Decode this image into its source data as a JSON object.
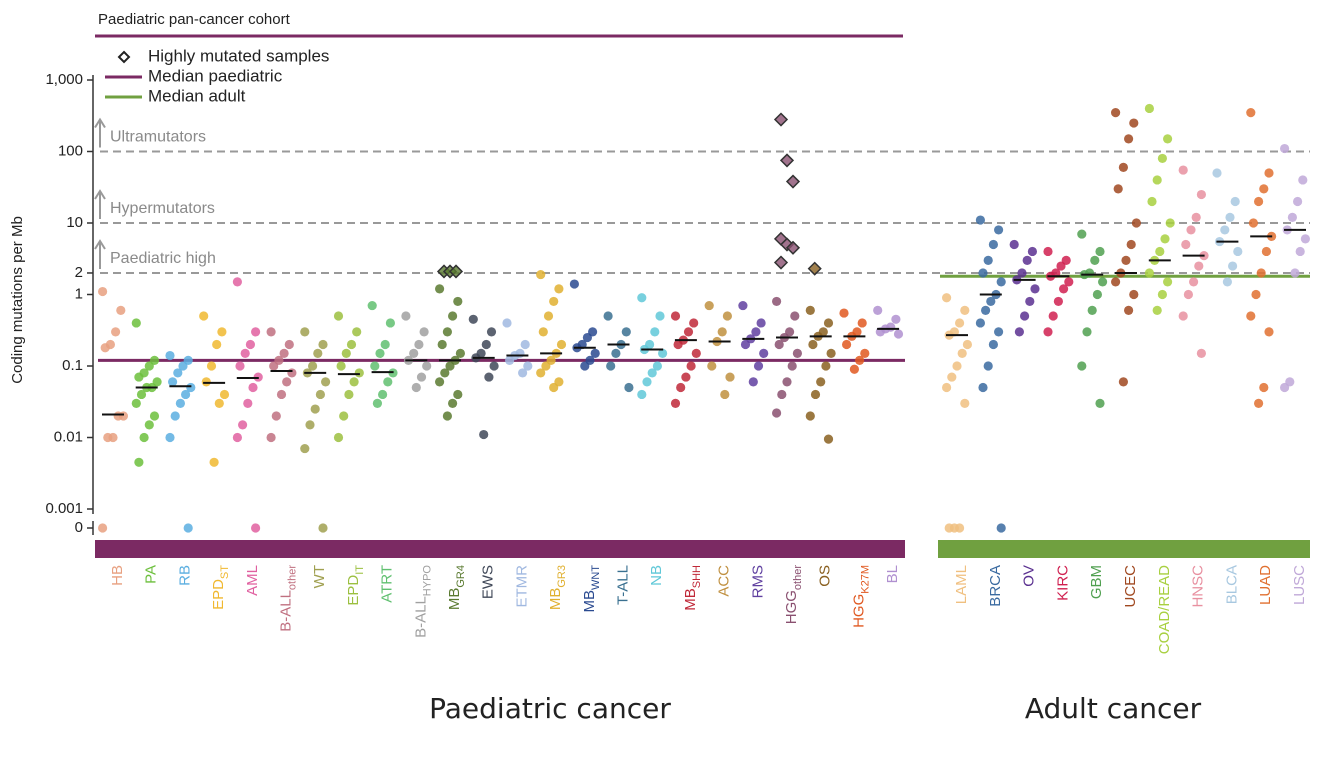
{
  "chart_data": {
    "type": "strip",
    "title": "Paediatric pan-cancer cohort",
    "title_color": "#7b2a63",
    "y_label": "Coding mutations per Mb",
    "log": true,
    "ylim": [
      0.001,
      1000
    ],
    "yticks": [
      0,
      0.001,
      0.01,
      0.1,
      1,
      2,
      10,
      100,
      {
        "value": 1000,
        "label": "1,000"
      }
    ],
    "reference_lines": [
      {
        "value": 2,
        "label": "Paediatric high"
      },
      {
        "value": 10,
        "label": "Hypermutators"
      },
      {
        "value": 100,
        "label": "Ultramutators"
      }
    ],
    "highly_mutated_label": "Highly mutated samples",
    "groups": [
      {
        "name": "Paediatric cancer",
        "color": "#7b2a63",
        "label_color": "#7030a0",
        "median": 0.12,
        "median_label": "Median paediatric",
        "categories": [
          {
            "name": "HB",
            "color": "#e8a080",
            "median": 0.021,
            "values": [
              1.1,
              0.6,
              0.3,
              0.2,
              0.18,
              0.02,
              0.02,
              0.01,
              0.01,
              0
            ]
          },
          {
            "name": "PA",
            "color": "#6cbf3c",
            "median": 0.05,
            "values": [
              0.4,
              0.12,
              0.1,
              0.08,
              0.07,
              0.06,
              0.05,
              0.05,
              0.04,
              0.03,
              0.02,
              0.015,
              0.01,
              0.0045
            ]
          },
          {
            "name": "RB",
            "color": "#5aaee0",
            "median": 0.052,
            "values": [
              0.14,
              0.12,
              0.1,
              0.08,
              0.06,
              0.05,
              0.04,
              0.03,
              0.02,
              0.01,
              0
            ]
          },
          {
            "name": "EPD",
            "sub": "ST",
            "color": "#f0b830",
            "median": 0.058,
            "values": [
              0.5,
              0.3,
              0.2,
              0.1,
              0.06,
              0.04,
              0.03,
              0.0045
            ]
          },
          {
            "name": "AML",
            "color": "#e060a0",
            "median": 0.068,
            "values": [
              1.5,
              0.3,
              0.2,
              0.15,
              0.1,
              0.07,
              0.05,
              0.03,
              0.015,
              0.01,
              0
            ]
          },
          {
            "name": "B-ALL",
            "sub": "other",
            "color": "#c07080",
            "median": 0.085,
            "values": [
              0.3,
              0.2,
              0.15,
              0.12,
              0.1,
              0.08,
              0.06,
              0.04,
              0.02,
              0.01
            ]
          },
          {
            "name": "WT",
            "color": "#a0a050",
            "median": 0.08,
            "values": [
              0.3,
              0.2,
              0.15,
              0.1,
              0.08,
              0.06,
              0.04,
              0.025,
              0.015,
              0.007,
              0
            ]
          },
          {
            "name": "EPD",
            "sub": "IT",
            "color": "#9cc040",
            "median": 0.077,
            "values": [
              0.5,
              0.3,
              0.2,
              0.15,
              0.1,
              0.08,
              0.06,
              0.04,
              0.02,
              0.01
            ]
          },
          {
            "name": "ATRT",
            "color": "#60c070",
            "median": 0.082,
            "values": [
              0.7,
              0.4,
              0.2,
              0.15,
              0.1,
              0.08,
              0.06,
              0.04,
              0.03
            ]
          },
          {
            "name": "B-ALL",
            "sub": "HYPO",
            "color": "#a0a0a0",
            "median": 0.12,
            "values": [
              0.5,
              0.3,
              0.2,
              0.15,
              0.12,
              0.1,
              0.07,
              0.05
            ]
          },
          {
            "name": "MB",
            "sub": "GR4",
            "color": "#5a7a30",
            "median": 0.12,
            "values": [
              1.2,
              0.8,
              0.5,
              0.3,
              0.2,
              0.15,
              0.12,
              0.1,
              0.08,
              0.06,
              0.04,
              0.03,
              0.02
            ],
            "outliers": [
              2.1,
              2.1,
              2.1
            ]
          },
          {
            "name": "EWS",
            "color": "#404858",
            "median": 0.13,
            "values": [
              0.45,
              0.3,
              0.2,
              0.15,
              0.13,
              0.1,
              0.07,
              0.011
            ]
          },
          {
            "name": "ETMR",
            "color": "#a0b8e0",
            "median": 0.14,
            "values": [
              0.4,
              0.2,
              0.15,
              0.14,
              0.12,
              0.1,
              0.08
            ]
          },
          {
            "name": "MB",
            "sub": "GR3",
            "color": "#e0b030",
            "median": 0.15,
            "values": [
              1.9,
              1.2,
              0.8,
              0.5,
              0.3,
              0.2,
              0.15,
              0.12,
              0.1,
              0.08,
              0.06,
              0.05
            ]
          },
          {
            "name": "MB",
            "sub": "WNT",
            "color": "#2a4a90",
            "median": 0.18,
            "values": [
              1.4,
              0.3,
              0.25,
              0.2,
              0.18,
              0.15,
              0.12,
              0.1
            ]
          },
          {
            "name": "T-ALL",
            "color": "#3a7090",
            "median": 0.2,
            "values": [
              0.5,
              0.3,
              0.2,
              0.15,
              0.1,
              0.05
            ]
          },
          {
            "name": "NB",
            "color": "#60c8d8",
            "median": 0.17,
            "values": [
              0.9,
              0.5,
              0.3,
              0.2,
              0.17,
              0.15,
              0.1,
              0.08,
              0.06,
              0.04
            ]
          },
          {
            "name": "MB",
            "sub": "SHH",
            "color": "#c02838",
            "median": 0.23,
            "values": [
              0.5,
              0.4,
              0.3,
              0.23,
              0.2,
              0.15,
              0.1,
              0.07,
              0.05,
              0.03
            ]
          },
          {
            "name": "ACC",
            "color": "#c09040",
            "median": 0.22,
            "values": [
              0.7,
              0.5,
              0.3,
              0.22,
              0.1,
              0.07,
              0.04
            ]
          },
          {
            "name": "RMS",
            "color": "#6040a0",
            "median": 0.24,
            "values": [
              0.7,
              0.4,
              0.3,
              0.24,
              0.2,
              0.15,
              0.1,
              0.06
            ]
          },
          {
            "name": "HGG",
            "sub": "other",
            "color": "#8a5070",
            "median": 0.25,
            "values": [
              0.8,
              0.5,
              0.3,
              0.25,
              0.2,
              0.15,
              0.1,
              0.06,
              0.04,
              0.022
            ],
            "outliers": [
              280,
              75,
              38,
              6,
              5,
              4.5,
              2.8
            ]
          },
          {
            "name": "OS",
            "color": "#8a6020",
            "median": 0.26,
            "values": [
              0.6,
              0.4,
              0.3,
              0.26,
              0.2,
              0.15,
              0.1,
              0.06,
              0.04,
              0.02,
              0.0095
            ],
            "outliers": [
              2.3
            ]
          },
          {
            "name": "HGG",
            "sub": "K27M",
            "color": "#e05820",
            "median": 0.26,
            "values": [
              0.55,
              0.4,
              0.3,
              0.26,
              0.2,
              0.15,
              0.12,
              0.09
            ]
          },
          {
            "name": "BL",
            "color": "#b090d0",
            "median": 0.33,
            "values": [
              0.6,
              0.45,
              0.35,
              0.33,
              0.3,
              0.28
            ]
          }
        ]
      },
      {
        "name": "Adult cancer",
        "color": "#70a040",
        "label_color": "#70ad47",
        "median": 1.8,
        "median_label": "Median adult",
        "categories": [
          {
            "name": "LAML",
            "color": "#f0c080",
            "median": 0.27,
            "values": [
              0.9,
              0.6,
              0.4,
              0.3,
              0.27,
              0.2,
              0.15,
              0.1,
              0.07,
              0.05,
              0.03,
              0,
              0,
              0
            ]
          },
          {
            "name": "BRCA",
            "color": "#3a6aa0",
            "median": 1.0,
            "values": [
              11,
              8,
              5,
              3,
              2,
              1.5,
              1,
              0.8,
              0.6,
              0.4,
              0.3,
              0.2,
              0.1,
              0.05,
              0
            ]
          },
          {
            "name": "OV",
            "color": "#5a3090",
            "median": 1.6,
            "values": [
              5,
              4,
              3,
              2,
              1.6,
              1.2,
              0.8,
              0.5,
              0.3
            ]
          },
          {
            "name": "KIRC",
            "color": "#d02050",
            "median": 1.8,
            "values": [
              4,
              3,
              2.5,
              2,
              1.8,
              1.5,
              1.2,
              0.8,
              0.5,
              0.3
            ]
          },
          {
            "name": "GBM",
            "color": "#50a050",
            "median": 1.9,
            "values": [
              7,
              4,
              3,
              2,
              1.9,
              1.5,
              1,
              0.6,
              0.3,
              0.1,
              0.03
            ]
          },
          {
            "name": "UCEC",
            "color": "#a04820",
            "median": 2.0,
            "values": [
              350,
              250,
              150,
              60,
              30,
              10,
              5,
              3,
              2,
              1.5,
              1,
              0.6,
              0.06
            ]
          },
          {
            "name": "COAD/READ",
            "color": "#a8d040",
            "median": 3.0,
            "values": [
              400,
              150,
              80,
              40,
              20,
              10,
              6,
              4,
              3,
              2,
              1.5,
              1,
              0.6
            ]
          },
          {
            "name": "HNSC",
            "color": "#e890a0",
            "median": 3.5,
            "values": [
              55,
              25,
              12,
              8,
              5,
              3.5,
              2.5,
              1.5,
              1,
              0.5,
              0.15
            ]
          },
          {
            "name": "BLCA",
            "color": "#a8c8e0",
            "median": 5.5,
            "values": [
              50,
              20,
              12,
              8,
              5.5,
              4,
              2.5,
              1.5
            ]
          },
          {
            "name": "LUAD",
            "color": "#e07030",
            "median": 6.5,
            "values": [
              350,
              50,
              30,
              20,
              10,
              6.5,
              4,
              2,
              1,
              0.5,
              0.3,
              0.05,
              0.03
            ]
          },
          {
            "name": "LUSC",
            "color": "#c0a8d8",
            "median": 8,
            "values": [
              110,
              40,
              20,
              12,
              8,
              6,
              4,
              2,
              0.06,
              0.05
            ]
          }
        ]
      }
    ]
  }
}
